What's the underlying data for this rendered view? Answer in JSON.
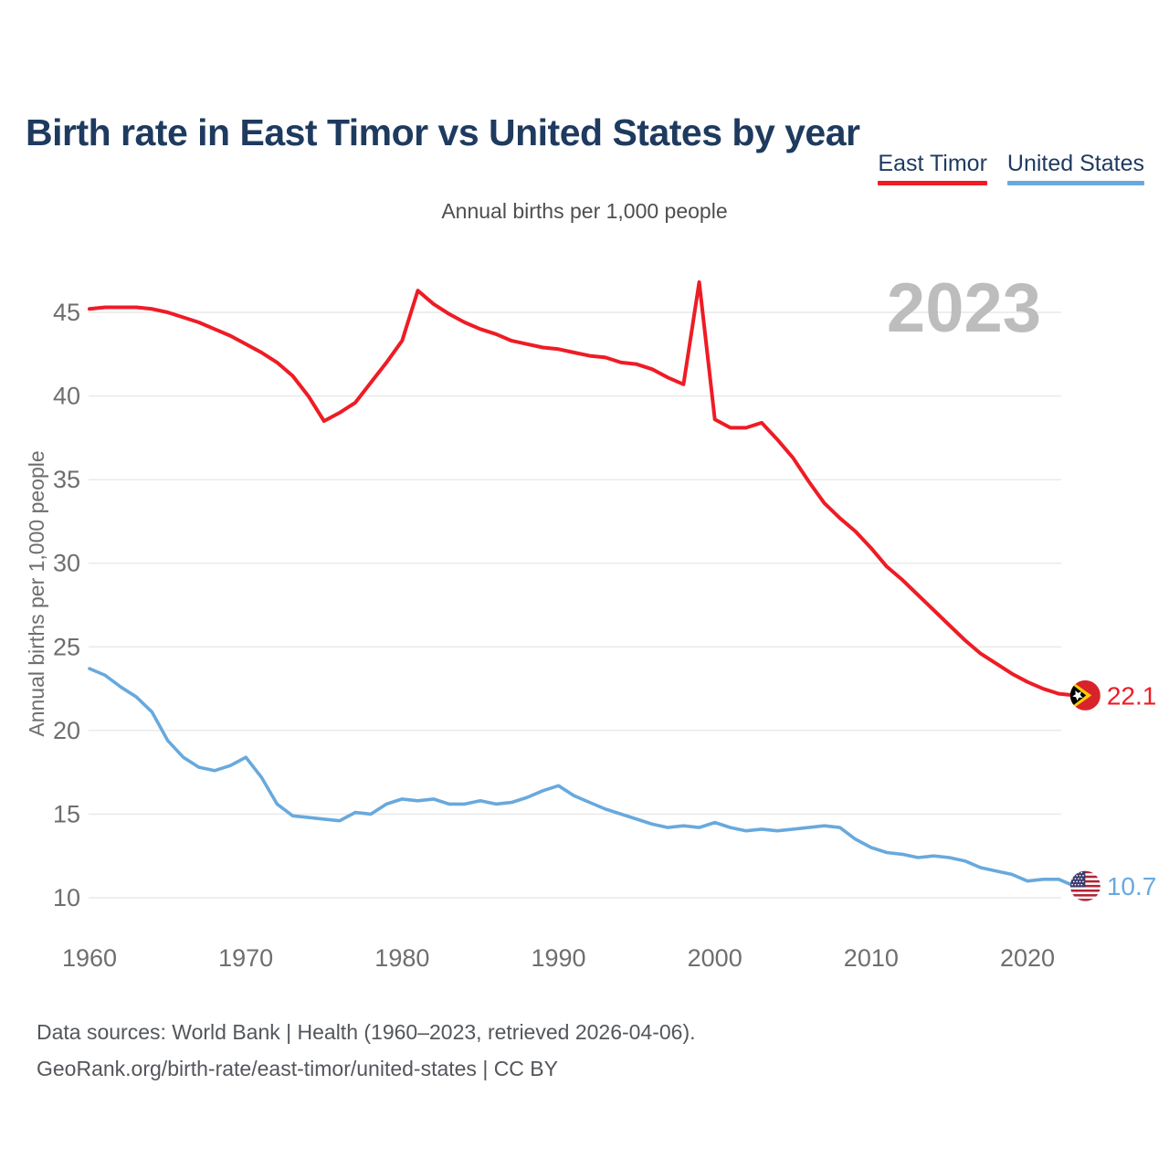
{
  "page": {
    "footer": {
      "line1": "Data sources: World Bank | Health (1960–2023, retrieved 2026-04-06).",
      "line2": "GeoRank.org/birth-rate/east-timor/united-states | CC BY"
    }
  },
  "chart_data": {
    "type": "line",
    "title": "Birth rate in East Timor vs United States by year",
    "subtitle": "Annual births per 1,000 people",
    "ylabel": "Annual births per 1,000 people",
    "watermark": "2023",
    "legend_position": "top-right",
    "grid": "horizontal",
    "xlim": [
      1960,
      2023
    ],
    "ylim": [
      8.2,
      47.8
    ],
    "yticks": [
      10,
      15,
      20,
      25,
      30,
      35,
      40,
      45
    ],
    "xticks": [
      1960,
      1970,
      1980,
      1990,
      2000,
      2010,
      2020
    ],
    "x": [
      1960,
      1961,
      1962,
      1963,
      1964,
      1965,
      1966,
      1967,
      1968,
      1969,
      1970,
      1971,
      1972,
      1973,
      1974,
      1975,
      1976,
      1977,
      1978,
      1979,
      1980,
      1981,
      1982,
      1983,
      1984,
      1985,
      1986,
      1987,
      1988,
      1989,
      1990,
      1991,
      1992,
      1993,
      1994,
      1995,
      1996,
      1997,
      1998,
      1999,
      2000,
      2001,
      2002,
      2003,
      2004,
      2005,
      2006,
      2007,
      2008,
      2009,
      2010,
      2011,
      2012,
      2013,
      2014,
      2015,
      2016,
      2017,
      2018,
      2019,
      2020,
      2021,
      2022,
      2023
    ],
    "series": [
      {
        "name": "East Timor",
        "color": "#ee1c25",
        "flag": "east-timor",
        "end_label": "22.1",
        "values": [
          45.2,
          45.3,
          45.3,
          45.3,
          45.2,
          45.0,
          44.7,
          44.4,
          44.0,
          43.6,
          43.1,
          42.6,
          42.0,
          41.2,
          40.0,
          38.5,
          39.0,
          39.6,
          40.8,
          42.0,
          43.3,
          46.3,
          45.5,
          44.9,
          44.4,
          44.0,
          43.7,
          43.3,
          43.1,
          42.9,
          42.8,
          42.6,
          42.4,
          42.3,
          42.0,
          41.9,
          41.6,
          41.1,
          40.7,
          46.8,
          38.6,
          38.1,
          38.1,
          38.4,
          37.4,
          36.3,
          34.9,
          33.6,
          32.7,
          31.9,
          30.9,
          29.8,
          29.0,
          28.1,
          27.2,
          26.3,
          25.4,
          24.6,
          24.0,
          23.4,
          22.9,
          22.5,
          22.2,
          22.1
        ]
      },
      {
        "name": "United States",
        "color": "#68a9dd",
        "flag": "united-states",
        "end_label": "10.7",
        "values": [
          23.7,
          23.3,
          22.6,
          22.0,
          21.1,
          19.4,
          18.4,
          17.8,
          17.6,
          17.9,
          18.4,
          17.2,
          15.6,
          14.9,
          14.8,
          14.7,
          14.6,
          15.1,
          15.0,
          15.6,
          15.9,
          15.8,
          15.9,
          15.6,
          15.6,
          15.8,
          15.6,
          15.7,
          16.0,
          16.4,
          16.7,
          16.1,
          15.7,
          15.3,
          15.0,
          14.7,
          14.4,
          14.2,
          14.3,
          14.2,
          14.5,
          14.2,
          14.0,
          14.1,
          14.0,
          14.1,
          14.2,
          14.3,
          14.2,
          13.5,
          13.0,
          12.7,
          12.6,
          12.4,
          12.5,
          12.4,
          12.2,
          11.8,
          11.6,
          11.4,
          11.0,
          11.1,
          11.1,
          10.7
        ]
      }
    ],
    "title_color": "#1e3a5f",
    "axis_color": "#6e6e6e",
    "grid_color": "#e8e8e8",
    "watermark_color": "#bdbdbd",
    "subtitle_color": "#4e4e4e",
    "footer_color": "#53565b"
  }
}
